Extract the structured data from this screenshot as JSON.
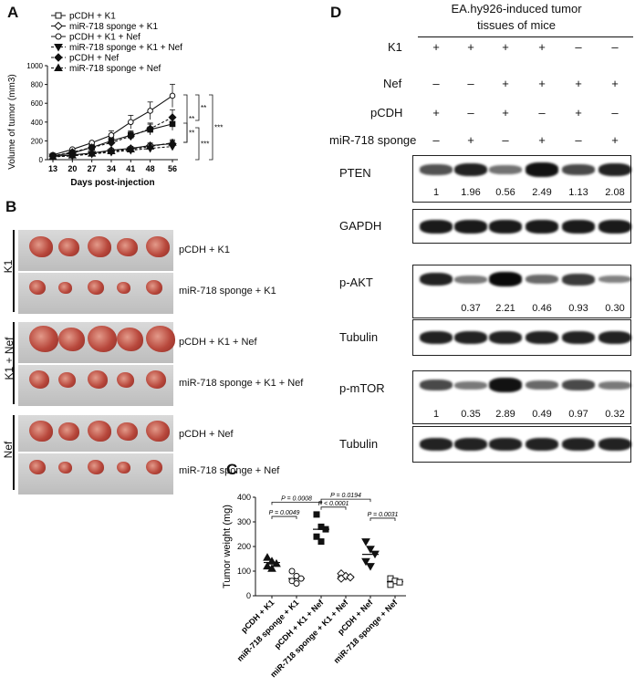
{
  "panels": {
    "A": "A",
    "B": "B",
    "C": "C",
    "D": "D"
  },
  "panel_a": {
    "legend": [
      "pCDH + K1",
      "miR-718 sponge + K1",
      "pCDH + K1 + Nef",
      "miR-718 sponge + K1 + Nef",
      "pCDH + Nef",
      "miR-718 sponge + Nef"
    ],
    "sig_labels": [
      "**",
      "**",
      "***",
      "**",
      "***"
    ]
  },
  "panel_b": {
    "groups": [
      "K1",
      "K1 + Nef",
      "Nef"
    ],
    "row_labels": [
      "pCDH + K1",
      "miR-718 sponge + K1",
      "pCDH + K1 + Nef",
      "miR-718 sponge + K1 + Nef",
      "pCDH + Nef",
      "miR-718 sponge + Nef"
    ]
  },
  "panel_c": {
    "pvalues": [
      "P = 0.0008",
      "P = 0.0194",
      "P < 0.0001",
      "P = 0.0049",
      "P = 0.0031"
    ]
  },
  "panel_d": {
    "title_line1": "EA.hy926-induced tumor",
    "title_line2": "tissues of mice",
    "conditions": [
      {
        "label": "K1",
        "symbols": [
          "+",
          "+",
          "+",
          "+",
          "–",
          "–"
        ]
      },
      {
        "label": "Nef",
        "symbols": [
          "–",
          "–",
          "+",
          "+",
          "+",
          "+"
        ]
      },
      {
        "label": "pCDH",
        "symbols": [
          "+",
          "–",
          "+",
          "–",
          "+",
          "–"
        ]
      },
      {
        "label": "miR-718 sponge",
        "symbols": [
          "–",
          "+",
          "–",
          "+",
          "–",
          "+"
        ]
      }
    ],
    "blots": [
      {
        "label": "PTEN",
        "values": [
          "1",
          "1.96",
          "0.56",
          "2.49",
          "1.13",
          "2.08"
        ]
      },
      {
        "label": "GAPDH",
        "values": []
      },
      {
        "label": "p-AKT",
        "values": [
          "",
          "0.37",
          "2.21",
          "0.46",
          "0.93",
          "0.30"
        ]
      },
      {
        "label": "Tubulin",
        "values": []
      },
      {
        "label": "p-mTOR",
        "values": [
          "1",
          "0.35",
          "2.89",
          "0.49",
          "0.97",
          "0.32"
        ]
      },
      {
        "label": "Tubulin",
        "values": []
      }
    ]
  },
  "chart_data": [
    {
      "type": "line",
      "xlabel": "Days post-injection",
      "ylabel": "Volume of tumor (mm3)",
      "x": [
        13,
        20,
        27,
        34,
        41,
        48,
        56
      ],
      "ylim": [
        0,
        1000
      ],
      "yticks": [
        0,
        200,
        400,
        600,
        800,
        1000
      ],
      "series": [
        {
          "name": "pCDH + K1",
          "marker": "square",
          "values": [
            40,
            70,
            130,
            200,
            260,
            320,
            380
          ]
        },
        {
          "name": "miR-718 sponge + K1",
          "marker": "diamond-open",
          "values": [
            35,
            50,
            70,
            100,
            120,
            150,
            170
          ]
        },
        {
          "name": "pCDH + K1 + Nef",
          "marker": "circle-open",
          "values": [
            50,
            110,
            180,
            260,
            400,
            520,
            680
          ]
        },
        {
          "name": "miR-718 sponge + K1 + Nef",
          "marker": "triangle-down",
          "values": [
            30,
            40,
            60,
            80,
            100,
            120,
            140
          ]
        },
        {
          "name": "pCDH + Nef",
          "marker": "diamond",
          "values": [
            40,
            80,
            130,
            180,
            250,
            330,
            450
          ]
        },
        {
          "name": "miR-718 sponge + Nef",
          "marker": "triangle-up",
          "values": [
            30,
            45,
            65,
            90,
            110,
            140,
            180
          ]
        }
      ]
    },
    {
      "type": "scatter",
      "ylabel": "Tumor weight (mg)",
      "ylim": [
        0,
        400
      ],
      "yticks": [
        0,
        100,
        200,
        300,
        400
      ],
      "categories": [
        "pCDH + K1",
        "miR-718 sponge + K1",
        "pCDH + K1 + Nef",
        "miR-718 sponge + K1 + Nef",
        "pCDH + Nef",
        "miR-718 sponge + Nef"
      ],
      "series": [
        {
          "category": "pCDH + K1",
          "marker": "triangle-up",
          "values": [
            155,
            140,
            130,
            120,
            110
          ],
          "mean": 135
        },
        {
          "category": "miR-718 sponge + K1",
          "marker": "circle-open",
          "values": [
            100,
            80,
            70,
            60,
            50
          ],
          "mean": 70
        },
        {
          "category": "pCDH + K1 + Nef",
          "marker": "square",
          "values": [
            330,
            280,
            270,
            240,
            220
          ],
          "mean": 270
        },
        {
          "category": "miR-718 sponge + K1 + Nef",
          "marker": "diamond-open",
          "values": [
            90,
            80,
            75,
            70
          ],
          "mean": 78
        },
        {
          "category": "pCDH + Nef",
          "marker": "triangle-down",
          "values": [
            220,
            190,
            170,
            140,
            120
          ],
          "mean": 168
        },
        {
          "category": "miR-718 sponge + Nef",
          "marker": "square-open",
          "values": [
            70,
            60,
            55,
            45
          ],
          "mean": 57
        }
      ]
    }
  ]
}
